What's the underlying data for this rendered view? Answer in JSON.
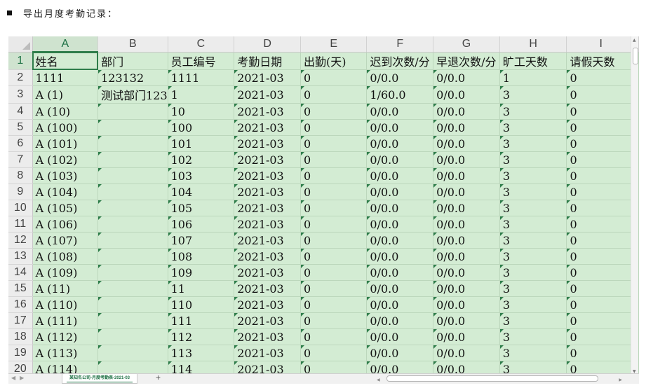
{
  "heading": "导出月度考勤记录：",
  "sheet": {
    "columns": [
      "A",
      "B",
      "C",
      "D",
      "E",
      "F",
      "G",
      "H",
      "I"
    ],
    "active_column": "A",
    "active_row": "1",
    "rows": [
      {
        "n": "1",
        "cells": [
          "姓名",
          "部门",
          "员工编号",
          "考勤日期",
          "出勤(天)",
          "迟到次数/分",
          "早退次数/分",
          "旷工天数",
          "请假天数"
        ]
      },
      {
        "n": "2",
        "cells": [
          "1111",
          "123132",
          "1111",
          "2021-03",
          "0",
          "0/0.0",
          "0/0.0",
          "1",
          "0"
        ]
      },
      {
        "n": "3",
        "cells": [
          "A (1)",
          "测试部门123",
          "1",
          "2021-03",
          "0",
          "1/60.0",
          "0/0.0",
          "3",
          "0"
        ]
      },
      {
        "n": "4",
        "cells": [
          "A (10)",
          "",
          "10",
          "2021-03",
          "0",
          "0/0.0",
          "0/0.0",
          "3",
          "0"
        ]
      },
      {
        "n": "5",
        "cells": [
          "A (100)",
          "",
          "100",
          "2021-03",
          "0",
          "0/0.0",
          "0/0.0",
          "3",
          "0"
        ]
      },
      {
        "n": "6",
        "cells": [
          "A (101)",
          "",
          "101",
          "2021-03",
          "0",
          "0/0.0",
          "0/0.0",
          "3",
          "0"
        ]
      },
      {
        "n": "7",
        "cells": [
          "A (102)",
          "",
          "102",
          "2021-03",
          "0",
          "0/0.0",
          "0/0.0",
          "3",
          "0"
        ]
      },
      {
        "n": "8",
        "cells": [
          "A (103)",
          "",
          "103",
          "2021-03",
          "0",
          "0/0.0",
          "0/0.0",
          "3",
          "0"
        ]
      },
      {
        "n": "9",
        "cells": [
          "A (104)",
          "",
          "104",
          "2021-03",
          "0",
          "0/0.0",
          "0/0.0",
          "3",
          "0"
        ]
      },
      {
        "n": "10",
        "cells": [
          "A (105)",
          "",
          "105",
          "2021-03",
          "0",
          "0/0.0",
          "0/0.0",
          "3",
          "0"
        ]
      },
      {
        "n": "11",
        "cells": [
          "A (106)",
          "",
          "106",
          "2021-03",
          "0",
          "0/0.0",
          "0/0.0",
          "3",
          "0"
        ]
      },
      {
        "n": "12",
        "cells": [
          "A (107)",
          "",
          "107",
          "2021-03",
          "0",
          "0/0.0",
          "0/0.0",
          "3",
          "0"
        ]
      },
      {
        "n": "13",
        "cells": [
          "A (108)",
          "",
          "108",
          "2021-03",
          "0",
          "0/0.0",
          "0/0.0",
          "3",
          "0"
        ]
      },
      {
        "n": "14",
        "cells": [
          "A (109)",
          "",
          "109",
          "2021-03",
          "0",
          "0/0.0",
          "0/0.0",
          "3",
          "0"
        ]
      },
      {
        "n": "15",
        "cells": [
          "A (11)",
          "",
          "11",
          "2021-03",
          "0",
          "0/0.0",
          "0/0.0",
          "3",
          "0"
        ]
      },
      {
        "n": "16",
        "cells": [
          "A (110)",
          "",
          "110",
          "2021-03",
          "0",
          "0/0.0",
          "0/0.0",
          "3",
          "0"
        ]
      },
      {
        "n": "17",
        "cells": [
          "A (111)",
          "",
          "111",
          "2021-03",
          "0",
          "0/0.0",
          "0/0.0",
          "3",
          "0"
        ]
      },
      {
        "n": "18",
        "cells": [
          "A (112)",
          "",
          "112",
          "2021-03",
          "0",
          "0/0.0",
          "0/0.0",
          "3",
          "0"
        ]
      },
      {
        "n": "19",
        "cells": [
          "A (113)",
          "",
          "113",
          "2021-03",
          "0",
          "0/0.0",
          "0/0.0",
          "3",
          "0"
        ]
      },
      {
        "n": "20",
        "cells": [
          "A (114)",
          "",
          "114",
          "2021-03",
          "0",
          "0/0.0",
          "0/0.0",
          "3",
          "0"
        ]
      }
    ]
  },
  "tabs": {
    "sheet_name": "某知名公司-月度考勤表-2021-03",
    "add_label": "+"
  },
  "colors": {
    "cell_fill": "#d3ecd3",
    "accent": "#2e7d4a"
  }
}
